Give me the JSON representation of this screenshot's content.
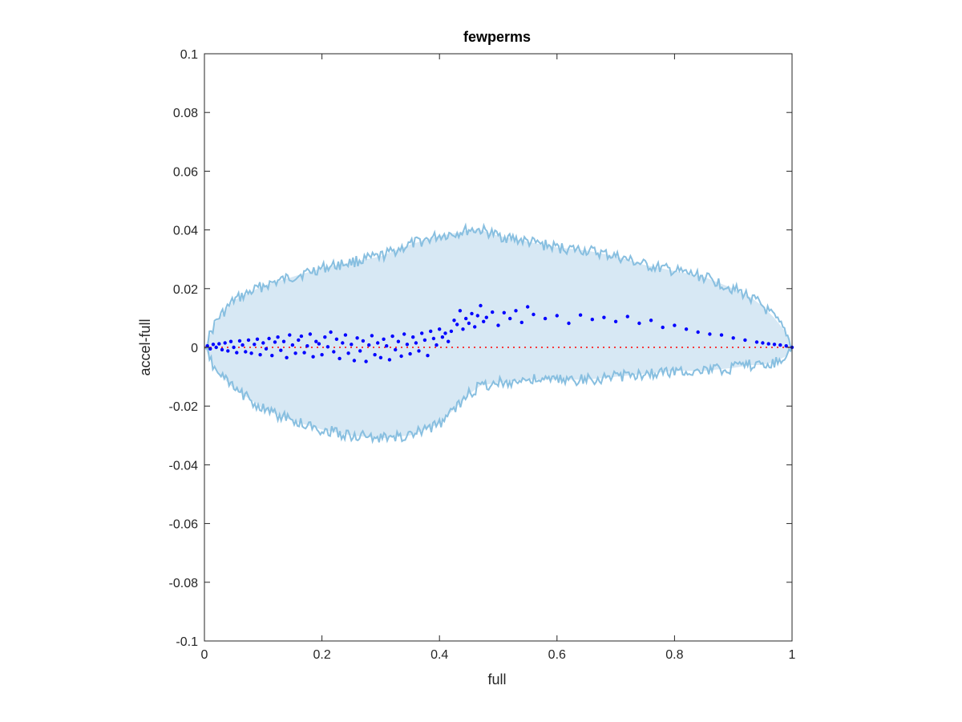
{
  "chart_data": {
    "type": "scatter",
    "title": "fewperms",
    "xlabel": "full",
    "ylabel": "accel-full",
    "xlim": [
      0,
      1
    ],
    "ylim": [
      -0.1,
      0.1
    ],
    "xticks": [
      "0",
      "0.2",
      "0.4",
      "0.6",
      "0.8",
      "1"
    ],
    "yticks": [
      "0.1",
      "0.08",
      "0.06",
      "0.04",
      "0.02",
      "0",
      "-0.02",
      "-0.04",
      "-0.06",
      "-0.08",
      "-0.1"
    ],
    "grid": false,
    "reference_line": {
      "y": 0,
      "style": "dotted",
      "color": "#ff0000"
    },
    "envelope": {
      "x": [
        0,
        0.02,
        0.05,
        0.08,
        0.1,
        0.15,
        0.2,
        0.25,
        0.3,
        0.35,
        0.4,
        0.43,
        0.45,
        0.47,
        0.5,
        0.55,
        0.6,
        0.65,
        0.7,
        0.75,
        0.8,
        0.85,
        0.9,
        0.93,
        0.95,
        0.97,
        0.99,
        1.0
      ],
      "upper": [
        0,
        0.009,
        0.016,
        0.019,
        0.021,
        0.024,
        0.027,
        0.029,
        0.031,
        0.035,
        0.038,
        0.039,
        0.04,
        0.04,
        0.038,
        0.036,
        0.034,
        0.033,
        0.031,
        0.028,
        0.026,
        0.024,
        0.02,
        0.017,
        0.014,
        0.01,
        0.005,
        0
      ],
      "lower": [
        0,
        -0.008,
        -0.014,
        -0.018,
        -0.021,
        -0.025,
        -0.028,
        -0.03,
        -0.031,
        -0.03,
        -0.026,
        -0.02,
        -0.016,
        -0.013,
        -0.012,
        -0.011,
        -0.011,
        -0.011,
        -0.01,
        -0.009,
        -0.008,
        -0.008,
        -0.007,
        -0.006,
        -0.006,
        -0.005,
        -0.003,
        0
      ],
      "line_color": "#88bfe0",
      "fill_color": "#d7e8f4"
    },
    "series": [
      {
        "color": "#0000ff",
        "points": [
          [
            0.005,
            0.0005
          ],
          [
            0.01,
            -0.0005
          ],
          [
            0.015,
            0.001
          ],
          [
            0.02,
            0.0
          ],
          [
            0.025,
            0.0012
          ],
          [
            0.03,
            -0.0008
          ],
          [
            0.035,
            0.0015
          ],
          [
            0.04,
            -0.0012
          ],
          [
            0.045,
            0.002
          ],
          [
            0.05,
            0.0
          ],
          [
            0.055,
            -0.0018
          ],
          [
            0.06,
            0.0022
          ],
          [
            0.065,
            0.0008
          ],
          [
            0.07,
            -0.0015
          ],
          [
            0.075,
            0.0025
          ],
          [
            0.08,
            -0.002
          ],
          [
            0.085,
            0.001
          ],
          [
            0.09,
            0.0028
          ],
          [
            0.095,
            -0.0025
          ],
          [
            0.1,
            0.0015
          ],
          [
            0.105,
            -0.0005
          ],
          [
            0.11,
            0.003
          ],
          [
            0.115,
            -0.0028
          ],
          [
            0.12,
            0.0018
          ],
          [
            0.125,
            0.0035
          ],
          [
            0.13,
            -0.001
          ],
          [
            0.135,
            0.002
          ],
          [
            0.14,
            -0.0035
          ],
          [
            0.145,
            0.0042
          ],
          [
            0.15,
            0.0008
          ],
          [
            0.155,
            -0.002
          ],
          [
            0.16,
            0.0025
          ],
          [
            0.165,
            0.0038
          ],
          [
            0.17,
            -0.0018
          ],
          [
            0.175,
            0.0005
          ],
          [
            0.18,
            0.0045
          ],
          [
            0.185,
            -0.0032
          ],
          [
            0.19,
            0.002
          ],
          [
            0.195,
            0.0012
          ],
          [
            0.2,
            -0.0025
          ],
          [
            0.205,
            0.0035
          ],
          [
            0.21,
            0.0002
          ],
          [
            0.215,
            0.0052
          ],
          [
            0.22,
            -0.0015
          ],
          [
            0.225,
            0.0028
          ],
          [
            0.23,
            -0.0038
          ],
          [
            0.235,
            0.0015
          ],
          [
            0.24,
            0.0042
          ],
          [
            0.245,
            -0.002
          ],
          [
            0.25,
            0.001
          ],
          [
            0.255,
            -0.0045
          ],
          [
            0.26,
            0.0032
          ],
          [
            0.265,
            -0.0012
          ],
          [
            0.27,
            0.0022
          ],
          [
            0.275,
            -0.0048
          ],
          [
            0.28,
            0.0008
          ],
          [
            0.285,
            0.004
          ],
          [
            0.29,
            -0.0025
          ],
          [
            0.295,
            0.0015
          ],
          [
            0.3,
            -0.0035
          ],
          [
            0.305,
            0.0028
          ],
          [
            0.31,
            0.0005
          ],
          [
            0.315,
            -0.0042
          ],
          [
            0.32,
            0.0038
          ],
          [
            0.325,
            -0.0008
          ],
          [
            0.33,
            0.002
          ],
          [
            0.335,
            -0.003
          ],
          [
            0.34,
            0.0045
          ],
          [
            0.345,
            0.001
          ],
          [
            0.35,
            -0.0022
          ],
          [
            0.355,
            0.0035
          ],
          [
            0.36,
            0.0015
          ],
          [
            0.365,
            -0.0012
          ],
          [
            0.37,
            0.0048
          ],
          [
            0.375,
            0.0025
          ],
          [
            0.38,
            -0.0028
          ],
          [
            0.385,
            0.0055
          ],
          [
            0.39,
            0.003
          ],
          [
            0.395,
            0.0008
          ],
          [
            0.4,
            0.0062
          ],
          [
            0.405,
            0.0035
          ],
          [
            0.41,
            0.0048
          ],
          [
            0.415,
            0.002
          ],
          [
            0.42,
            0.0055
          ],
          [
            0.425,
            0.0092
          ],
          [
            0.43,
            0.0078
          ],
          [
            0.435,
            0.0125
          ],
          [
            0.44,
            0.0062
          ],
          [
            0.445,
            0.0098
          ],
          [
            0.45,
            0.0082
          ],
          [
            0.455,
            0.0115
          ],
          [
            0.46,
            0.007
          ],
          [
            0.465,
            0.0108
          ],
          [
            0.47,
            0.0142
          ],
          [
            0.475,
            0.0088
          ],
          [
            0.48,
            0.0102
          ],
          [
            0.49,
            0.012
          ],
          [
            0.5,
            0.0075
          ],
          [
            0.51,
            0.0118
          ],
          [
            0.52,
            0.0098
          ],
          [
            0.53,
            0.0125
          ],
          [
            0.54,
            0.0085
          ],
          [
            0.55,
            0.0138
          ],
          [
            0.56,
            0.0112
          ],
          [
            0.58,
            0.0098
          ],
          [
            0.6,
            0.0108
          ],
          [
            0.62,
            0.0082
          ],
          [
            0.64,
            0.011
          ],
          [
            0.66,
            0.0095
          ],
          [
            0.68,
            0.0102
          ],
          [
            0.7,
            0.0088
          ],
          [
            0.72,
            0.0105
          ],
          [
            0.74,
            0.0082
          ],
          [
            0.76,
            0.0092
          ],
          [
            0.78,
            0.0068
          ],
          [
            0.8,
            0.0075
          ],
          [
            0.82,
            0.0062
          ],
          [
            0.84,
            0.0052
          ],
          [
            0.86,
            0.0045
          ],
          [
            0.88,
            0.0042
          ],
          [
            0.9,
            0.0032
          ],
          [
            0.92,
            0.0025
          ],
          [
            0.94,
            0.0018
          ],
          [
            0.95,
            0.0015
          ],
          [
            0.96,
            0.0012
          ],
          [
            0.97,
            0.001
          ],
          [
            0.98,
            0.0008
          ],
          [
            0.99,
            0.0005
          ],
          [
            1.0,
            0.0
          ]
        ]
      }
    ]
  }
}
